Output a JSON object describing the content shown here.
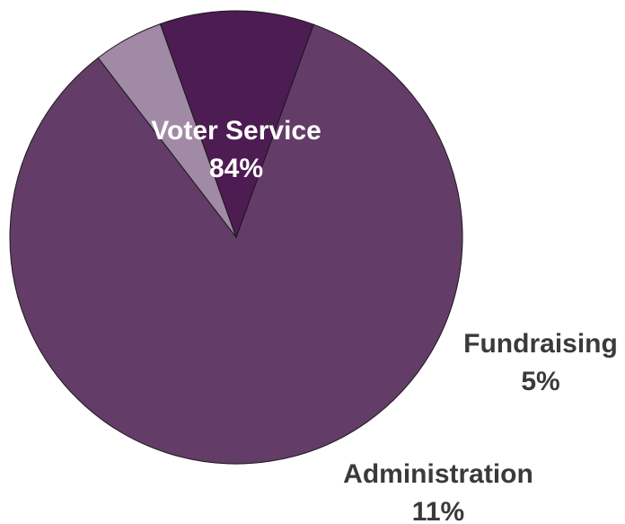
{
  "chart_data": {
    "type": "pie",
    "slices": [
      {
        "label": "Voter Service",
        "value": 84,
        "value_label": "84%",
        "color": "#643c68",
        "label_color": "#ffffff"
      },
      {
        "label": "Fundraising",
        "value": 5,
        "value_label": "5%",
        "color": "#a18aa6",
        "label_color": "#3a3a3a"
      },
      {
        "label": "Administration",
        "value": 11,
        "value_label": "11%",
        "color": "#4d1c52",
        "label_color": "#3a3a3a"
      }
    ]
  }
}
